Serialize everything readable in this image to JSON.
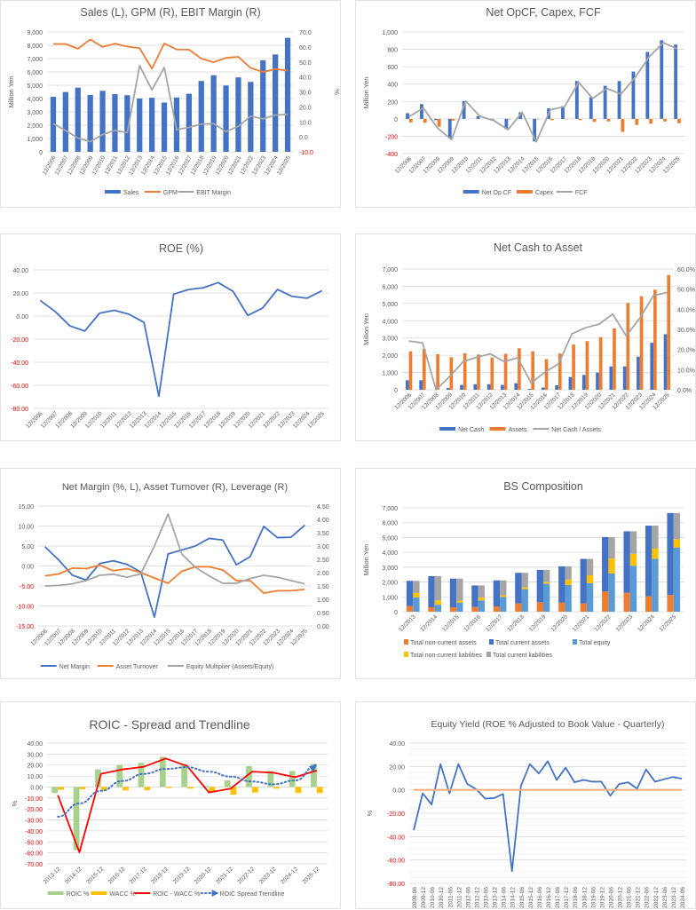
{
  "colors": {
    "blue": "#4472c4",
    "orange": "#ed7d31",
    "gray": "#a5a5a5",
    "yellow": "#ffc000",
    "lightblue": "#5b9bd5",
    "green": "#a9d18e",
    "red": "#ff0000",
    "dotblue": "#4472c4",
    "peach": "#f4b183",
    "negative_tick": "#ff0000",
    "tick": "#595959",
    "grid": "#d9d9d9"
  },
  "chart_data": [
    {
      "id": "sales",
      "type": "bar",
      "title": "Sales (L), GPM (R), EBIT Margin (R)",
      "ylabel": "Million Yen",
      "y2label": "%",
      "categories": [
        "12/2006",
        "12/2007",
        "12/2008",
        "12/2009",
        "12/2010",
        "12/2011",
        "12/2012",
        "12/2013",
        "12/2014",
        "12/2015",
        "12/2016",
        "12/2017",
        "12/2018",
        "12/2019",
        "12/2020",
        "12/2021",
        "12/2022",
        "12/2023",
        "12/2024",
        "12/2025"
      ],
      "ylim": [
        0,
        9000
      ],
      "yticks": [
        "0",
        "1,000",
        "2,000",
        "3,000",
        "4,000",
        "5,000",
        "6,000",
        "7,000",
        "8,000",
        "9,000"
      ],
      "y2lim": [
        -10,
        70
      ],
      "y2ticks": [
        "-10.0",
        "0.0",
        "10.0",
        "20.0",
        "30.0",
        "40.0",
        "50.0",
        "60.0",
        "70.0"
      ],
      "series": [
        {
          "name": "Sales",
          "kind": "bar",
          "axis": "left",
          "color": "blue",
          "values": [
            4130,
            4490,
            4820,
            4270,
            4580,
            4330,
            4250,
            4000,
            4060,
            3700,
            4080,
            4360,
            5320,
            5750,
            4980,
            5590,
            5250,
            6870,
            7310,
            8560
          ]
        },
        {
          "name": "GPM",
          "kind": "line",
          "axis": "right",
          "color": "orange",
          "values": [
            62.0,
            62.0,
            58.8,
            65.0,
            60.0,
            62.2,
            60.2,
            59.2,
            45.5,
            62.3,
            58.3,
            58.2,
            52.2,
            49.8,
            52.7,
            53.4,
            46.0,
            43.3,
            45.2,
            44.2
          ]
        },
        {
          "name": "EBIT Margin",
          "kind": "line",
          "axis": "right",
          "color": "gray",
          "values": [
            8.8,
            4.2,
            -0.8,
            -3.2,
            1.5,
            4.3,
            2.8,
            47.5,
            31.3,
            46.3,
            4.8,
            6.3,
            8.5,
            8.8,
            3.5,
            7.0,
            13.8,
            12.0,
            14.5,
            15.0
          ]
        }
      ],
      "legend": "bottom"
    },
    {
      "id": "cashflow",
      "type": "bar",
      "title": "Net OpCF, Capex, FCF",
      "ylabel": "Million Yen",
      "categories": [
        "12/2006",
        "12/2007",
        "12/2008",
        "12/2009",
        "12/2010",
        "12/2011",
        "12/2012",
        "12/2013",
        "12/2014",
        "12/2015",
        "12/2016",
        "12/2017",
        "12/2018",
        "12/2019",
        "12/2020",
        "12/2021",
        "12/2022",
        "12/2023",
        "12/2024",
        "12/2025"
      ],
      "ylim": [
        -400,
        1000
      ],
      "yticks": [
        "-400",
        "-200",
        "0",
        "200",
        "400",
        "600",
        "800",
        "1,000"
      ],
      "series": [
        {
          "name": "Net Op CF",
          "kind": "bar",
          "color": "blue",
          "values": [
            65,
            170,
            -15,
            -220,
            205,
            30,
            -10,
            -120,
            75,
            -260,
            120,
            145,
            435,
            250,
            380,
            435,
            545,
            770,
            905,
            855
          ]
        },
        {
          "name": "Capex",
          "kind": "bar",
          "color": "orange",
          "values": [
            -40,
            -45,
            -90,
            -20,
            0,
            0,
            0,
            -5,
            0,
            -5,
            -15,
            -5,
            -15,
            -35,
            -30,
            -150,
            -70,
            -55,
            -30,
            -50
          ]
        },
        {
          "name": "FCF",
          "kind": "line",
          "color": "gray",
          "values": [
            25,
            125,
            -105,
            -240,
            205,
            30,
            -20,
            -125,
            75,
            -265,
            105,
            140,
            420,
            235,
            350,
            285,
            475,
            715,
            875,
            805
          ]
        }
      ],
      "legend": "bottom"
    },
    {
      "id": "roe",
      "type": "line",
      "title": "ROE (%)",
      "categories": [
        "12/2006",
        "12/2007",
        "12/2008",
        "12/2009",
        "12/2010",
        "12/2011",
        "12/2012",
        "12/2013",
        "12/2014",
        "12/2015",
        "12/2016",
        "12/2017",
        "12/2018",
        "12/2019",
        "12/2020",
        "12/2021",
        "12/2022",
        "12/2023",
        "12/2024",
        "12/2025"
      ],
      "ylim": [
        -80,
        40
      ],
      "yticks": [
        "-80.00",
        "-60.00",
        "-40.00",
        "-20.00",
        "0.00",
        "20.00",
        "40.00"
      ],
      "series": [
        {
          "name": "ROE",
          "kind": "line",
          "color": "blue",
          "values": [
            13.5,
            4.0,
            -8.5,
            -13.0,
            2.5,
            5.0,
            1.5,
            -5.5,
            -69.5,
            19.0,
            23.0,
            24.5,
            29.0,
            21.5,
            0.5,
            7.0,
            23.0,
            17.0,
            15.5,
            22.0
          ]
        }
      ]
    },
    {
      "id": "netcash",
      "type": "bar",
      "title": "Net Cash to Asset",
      "ylabel": "Million Yen",
      "categories": [
        "12/2006",
        "12/2007",
        "12/2008",
        "12/2009",
        "12/2010",
        "12/2011",
        "12/2012",
        "12/2013",
        "12/2014",
        "12/2015",
        "12/2016",
        "12/2017",
        "12/2018",
        "12/2019",
        "12/2020",
        "12/2021",
        "12/2022",
        "12/2023",
        "12/2024",
        "12/2025"
      ],
      "ylim": [
        0,
        7000
      ],
      "yticks": [
        "0",
        "1,000",
        "2,000",
        "3,000",
        "4,000",
        "5,000",
        "6,000",
        "7,000"
      ],
      "y2lim": [
        0,
        60
      ],
      "y2ticks": [
        "0.0%",
        "10.0%",
        "20.0%",
        "30.0%",
        "40.0%",
        "50.0%",
        "60.0%"
      ],
      "series": [
        {
          "name": "Net Cash",
          "kind": "bar",
          "axis": "left",
          "color": "blue",
          "values": [
            550,
            550,
            0,
            100,
            280,
            320,
            320,
            280,
            380,
            50,
            130,
            260,
            740,
            860,
            1000,
            1350,
            1350,
            1920,
            2720,
            3220
          ]
        },
        {
          "name": "Assets",
          "kind": "bar",
          "axis": "left",
          "color": "orange",
          "values": [
            2230,
            2360,
            2060,
            1890,
            2110,
            2040,
            1870,
            2080,
            2400,
            2230,
            1770,
            2100,
            2620,
            2820,
            3050,
            3560,
            5030,
            5420,
            5800,
            6650
          ]
        },
        {
          "name": "Net Cash / Assets",
          "kind": "line",
          "axis": "right",
          "color": "gray",
          "values": [
            24.2,
            23.3,
            0.0,
            6.6,
            14.0,
            16.2,
            17.8,
            14.0,
            15.9,
            3.4,
            8.7,
            12.8,
            27.8,
            30.8,
            32.6,
            37.6,
            26.8,
            35.6,
            46.8,
            48.3
          ]
        }
      ],
      "legend": "bottom"
    },
    {
      "id": "dupont",
      "type": "line",
      "title": "Net Margin (%, L), Asset Turnover (R), Leverage (R)",
      "categories": [
        "12/2006",
        "12/2007",
        "12/2008",
        "12/2009",
        "12/2010",
        "12/2011",
        "12/2012",
        "12/2013",
        "12/2014",
        "12/2015",
        "12/2016",
        "12/2017",
        "12/2018",
        "12/2019",
        "12/2020",
        "12/2021",
        "12/2022",
        "12/2023",
        "12/2024",
        "12/2025"
      ],
      "ylim": [
        -15,
        15
      ],
      "yticks": [
        "-15.00",
        "-10.00",
        "-5.00",
        "0.00",
        "5.00",
        "10.00",
        "15.00"
      ],
      "y2lim": [
        0,
        4.5
      ],
      "y2ticks": [
        "0.00",
        "0.50",
        "1.00",
        "1.50",
        "2.00",
        "2.50",
        "3.00",
        "3.50",
        "4.00",
        "4.50"
      ],
      "series": [
        {
          "name": "Net Margin",
          "kind": "line",
          "axis": "left",
          "color": "blue",
          "values": [
            4.8,
            1.5,
            -2.3,
            -3.5,
            0.6,
            1.3,
            0.4,
            -1.5,
            -12.8,
            3.0,
            4.0,
            5.0,
            6.9,
            6.5,
            0.3,
            2.3,
            9.9,
            7.1,
            7.2,
            10.2
          ]
        },
        {
          "name": "Asset Turnover",
          "kind": "line",
          "axis": "right",
          "color": "orange",
          "values": [
            1.88,
            1.95,
            2.17,
            2.15,
            2.28,
            2.07,
            2.15,
            2.0,
            1.8,
            1.6,
            2.05,
            2.22,
            2.22,
            2.1,
            1.7,
            1.7,
            1.23,
            1.32,
            1.32,
            1.37
          ]
        },
        {
          "name": "Equity Multiplier (Assets/Equity)",
          "kind": "line",
          "axis": "right",
          "color": "gray",
          "values": [
            1.5,
            1.52,
            1.58,
            1.7,
            1.9,
            1.94,
            1.83,
            1.95,
            3.0,
            4.2,
            2.7,
            2.2,
            1.88,
            1.6,
            1.6,
            1.78,
            1.9,
            1.83,
            1.7,
            1.58
          ]
        }
      ],
      "legend": "bottom"
    },
    {
      "id": "bs",
      "type": "bar",
      "title": "BS Composition",
      "ylabel": "Million Yen",
      "categories": [
        "12/2013",
        "12/2014",
        "12/2015",
        "12/2016",
        "12/2017",
        "12/2018",
        "12/2019",
        "12/2020",
        "12/2021",
        "12/2022",
        "12/2023",
        "12/2024",
        "12/2025"
      ],
      "ylim": [
        0,
        7000
      ],
      "yticks": [
        "0",
        "1,000",
        "2,000",
        "3,000",
        "4,000",
        "5,000",
        "6,000",
        "7,000"
      ],
      "stack_assets": [
        {
          "name": "Total non-current assets",
          "color": "orange",
          "values": [
            380,
            300,
            300,
            320,
            360,
            560,
            640,
            620,
            560,
            1360,
            1280,
            1040,
            1130
          ]
        },
        {
          "name": "Total current assets",
          "color": "blue",
          "values": [
            1700,
            2100,
            1930,
            1450,
            1750,
            2060,
            2180,
            2440,
            3000,
            3670,
            4140,
            4760,
            5520
          ]
        }
      ],
      "stack_liab": [
        {
          "name": "Total equity",
          "color": "lightblue",
          "values": [
            970,
            470,
            620,
            760,
            1000,
            1520,
            1880,
            1800,
            1930,
            2580,
            3100,
            3570,
            4330
          ]
        },
        {
          "name": "Total non-current liabilities",
          "color": "yellow",
          "values": [
            290,
            290,
            130,
            200,
            110,
            120,
            110,
            370,
            520,
            1010,
            800,
            680,
            560
          ]
        },
        {
          "name": "Total current liabilities",
          "color": "gray",
          "values": [
            820,
            1640,
            1480,
            810,
            1000,
            980,
            830,
            890,
            1110,
            1440,
            1520,
            1550,
            1760
          ]
        }
      ],
      "legend": "bottom"
    },
    {
      "id": "roic",
      "type": "bar",
      "title": "ROIC - Spread and Trendline",
      "ylabel": "%",
      "categories": [
        "2013-12",
        "2014-12",
        "2015-12",
        "2016-12",
        "2017-12",
        "2018-12",
        "2019-12",
        "2020-12",
        "2021-12",
        "2022-12",
        "2023-12",
        "2024-12",
        "2025-12"
      ],
      "ylim": [
        -70,
        40
      ],
      "yticks": [
        "-70.00",
        "-60.00",
        "-50.00",
        "-40.00",
        "-30.00",
        "-20.00",
        "-10.00",
        "0.00",
        "10.00",
        "20.00",
        "30.00",
        "40.00"
      ],
      "series": [
        {
          "name": "ROIC %",
          "kind": "bar",
          "color": "green",
          "values": [
            -5.5,
            -57.5,
            16.0,
            20.0,
            22.0,
            27.5,
            21.0,
            1.0,
            6.0,
            19.0,
            14.5,
            14.5,
            21.0
          ]
        },
        {
          "name": "WACC %",
          "kind": "bar",
          "color": "yellow",
          "values": [
            -2.5,
            -2.0,
            -3.5,
            -3.0,
            -3.0,
            -1.0,
            -1.5,
            -5.0,
            -7.0,
            -5.0,
            -1.5,
            -5.5,
            -5.5
          ]
        },
        {
          "name": "ROIC - WACC %",
          "kind": "line",
          "color": "red",
          "values": [
            -7.5,
            -59.5,
            12.0,
            16.0,
            18.5,
            26.0,
            19.0,
            -5.0,
            -1.5,
            14.0,
            13.0,
            9.0,
            15.0
          ]
        },
        {
          "name": "ROIC Spread Trendline",
          "kind": "trend",
          "color": "dotblue",
          "values": [
            -27.0,
            -15.0,
            -3.5,
            5.5,
            12.0,
            16.5,
            18.0,
            14.0,
            9.5,
            5.0,
            2.5,
            6.0,
            20.0
          ]
        }
      ],
      "legend": "bottom"
    },
    {
      "id": "equityyield",
      "type": "line",
      "title": "Equity Yield (ROE % Adjusted to Book Value - Quarterly)",
      "ylabel": "%",
      "categories": [
        "2009-06",
        "2009-12",
        "2010-06",
        "2010-12",
        "2011-06",
        "2011-12",
        "2012-06",
        "2012-12",
        "2013-06",
        "2013-12",
        "2014-06",
        "2014-12",
        "2015-06",
        "2015-12",
        "2016-06",
        "2016-12",
        "2017-06",
        "2017-12",
        "2018-06",
        "2018-12",
        "2019-06",
        "2019-12",
        "2020-06",
        "2020-12",
        "2021-06",
        "2021-12",
        "2022-06",
        "2022-12",
        "2023-06",
        "2023-12",
        "2024-06"
      ],
      "ylim": [
        -80,
        40
      ],
      "yticks": [
        "-80.00",
        "-60.00",
        "-40.00",
        "-20.00",
        "0.00",
        "20.00",
        "40.00"
      ],
      "series": [
        {
          "name": "Equity Yield",
          "kind": "line",
          "color": "blue",
          "values": [
            -34.5,
            -3.0,
            -12.5,
            22.0,
            -3.0,
            22.0,
            5.0,
            0.5,
            -7.5,
            -7.0,
            -3.5,
            -69.5,
            3.5,
            22.0,
            14.0,
            24.5,
            8.5,
            19.0,
            6.5,
            8.5,
            7.0,
            7.0,
            -5.0,
            5.0,
            6.5,
            1.0,
            17.5,
            7.0,
            9.0,
            11.0,
            9.5
          ]
        },
        {
          "name": "Zero line",
          "kind": "line",
          "color": "peach",
          "values": [
            0,
            0,
            0,
            0,
            0,
            0,
            0,
            0,
            0,
            0,
            0,
            0,
            0,
            0,
            0,
            0,
            0,
            0,
            0,
            0,
            0,
            0,
            0,
            0,
            0,
            0,
            0,
            0,
            0,
            0,
            0
          ]
        }
      ]
    }
  ]
}
